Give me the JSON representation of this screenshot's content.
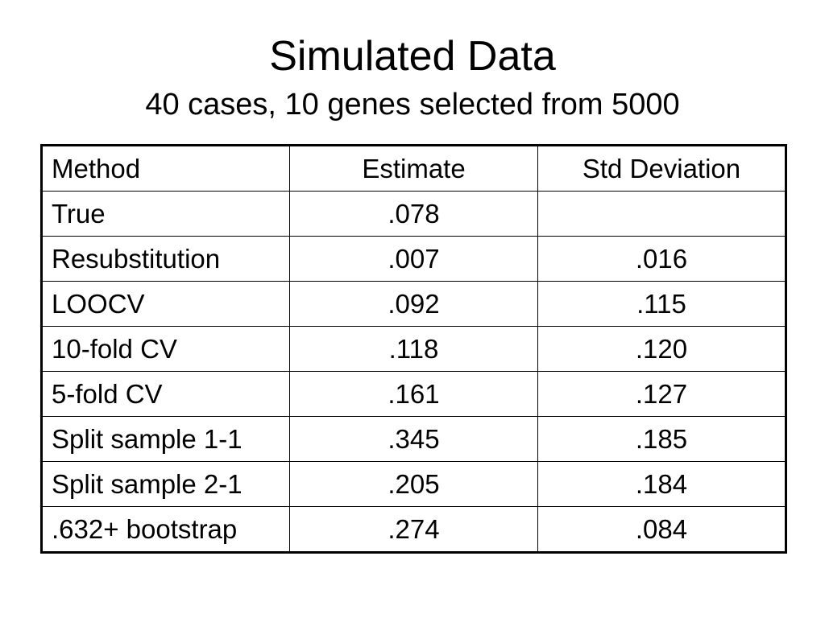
{
  "slide": {
    "title": "Simulated Data",
    "subtitle": "40 cases, 10 genes selected from 5000"
  },
  "table": {
    "columns": [
      "Method",
      "Estimate",
      "Std Deviation"
    ],
    "rows": [
      {
        "method": "True",
        "estimate": ".078",
        "std": ""
      },
      {
        "method": "Resubstitution",
        "estimate": ".007",
        "std": ".016"
      },
      {
        "method": "LOOCV",
        "estimate": ".092",
        "std": ".115"
      },
      {
        "method": "10-fold CV",
        "estimate": ".118",
        "std": ".120"
      },
      {
        "method": "5-fold CV",
        "estimate": ".161",
        "std": ".127"
      },
      {
        "method": "Split sample 1-1",
        "estimate": ".345",
        "std": ".185"
      },
      {
        "method": "Split sample 2-1",
        "estimate": ".205",
        "std": ".184"
      },
      {
        "method": ".632+ bootstrap",
        "estimate": ".274",
        "std": ".084"
      }
    ]
  }
}
